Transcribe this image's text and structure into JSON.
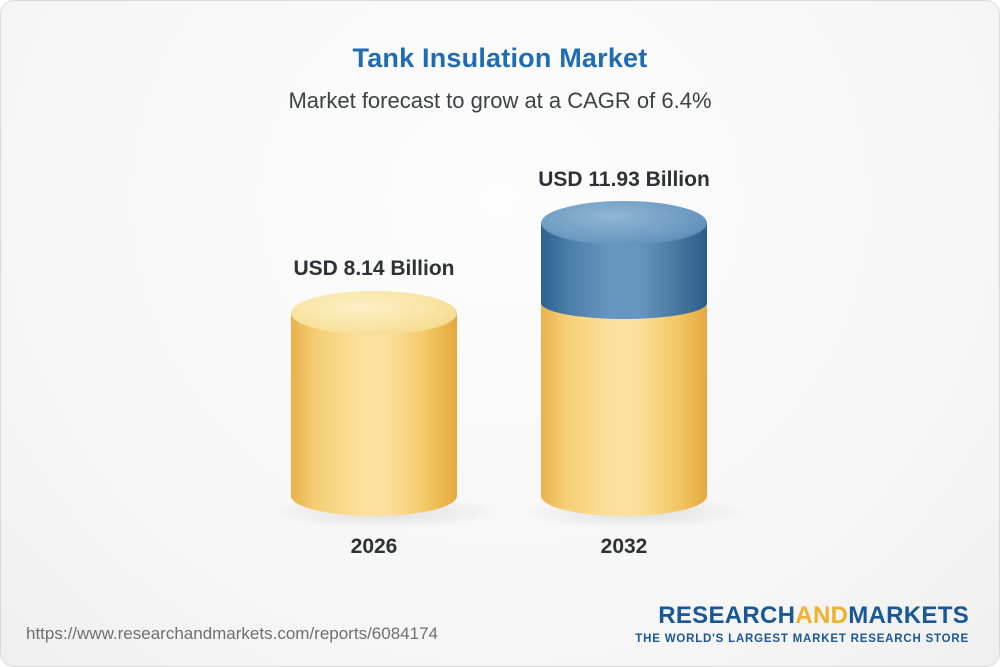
{
  "header": {
    "title": "Tank Insulation Market",
    "subtitle": "Market forecast to grow at a CAGR of 6.4%"
  },
  "chart_data": {
    "type": "bar",
    "title": "Tank Insulation Market",
    "subtitle": "Market forecast to grow at a CAGR of 6.4%",
    "categories": [
      "2026",
      "2032"
    ],
    "values": [
      8.14,
      11.93
    ],
    "value_labels": [
      "USD 8.14 Billion",
      "USD 11.93 Billion"
    ],
    "unit": "USD Billion",
    "cagr": "6.4%",
    "xlabel": "",
    "ylabel": "",
    "legend": "none",
    "grid": false,
    "colors": {
      "base_segment": "#f2c35c",
      "growth_segment": "#3e74a6",
      "title": "#1e6cb3"
    }
  },
  "footer": {
    "url": "https://www.researchandmarkets.com/reports/6084174",
    "logo": {
      "research": "RESEARCH",
      "and": "AND",
      "markets": "MARKETS",
      "tagline": "THE WORLD'S LARGEST MARKET RESEARCH STORE"
    }
  }
}
